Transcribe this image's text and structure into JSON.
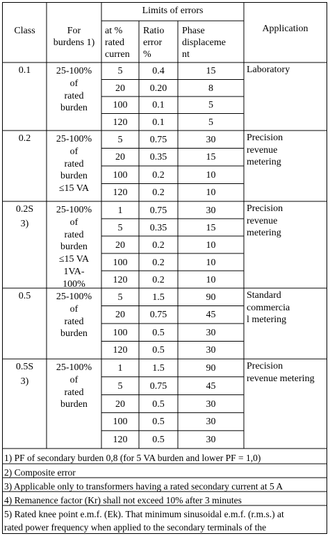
{
  "header": {
    "limits_of_errors": "Limits of errors",
    "class": "Class",
    "for_burdens": [
      "For",
      "burdens 1)"
    ],
    "at_rated_current": [
      "at  %",
      "rated",
      "curren"
    ],
    "ratio_error": [
      "Ratio",
      "error",
      "%"
    ],
    "phase_displacement": [
      "Phase",
      "displaceme",
      "nt"
    ],
    "application": "Application"
  },
  "rows": [
    {
      "class": [
        "0.1"
      ],
      "burden": [
        "25-100%",
        "of",
        "rated",
        "burden"
      ],
      "application": [
        "Laboratory"
      ],
      "sub": [
        {
          "pct": "5",
          "ratio": "0.4",
          "phase": "15"
        },
        {
          "pct": "20",
          "ratio": "0.20",
          "phase": "8"
        },
        {
          "pct": "100",
          "ratio": "0.1",
          "phase": "5"
        },
        {
          "pct": "120",
          "ratio": "0.1",
          "phase": "5"
        }
      ]
    },
    {
      "class": [
        "0.2"
      ],
      "burden": [
        "25-100%",
        "of",
        "rated",
        "burden",
        "≤15 VA"
      ],
      "application": [
        "Precision",
        "revenue",
        "metering"
      ],
      "sub": [
        {
          "pct": "5",
          "ratio": "0.75",
          "phase": "30"
        },
        {
          "pct": "20",
          "ratio": "0.35",
          "phase": "15"
        },
        {
          "pct": "100",
          "ratio": "0.2",
          "phase": "10"
        },
        {
          "pct": "120",
          "ratio": "0.2",
          "phase": "10"
        }
      ]
    },
    {
      "class": [
        "0.2S",
        "3)"
      ],
      "burden": [
        "25-100%",
        "of",
        "rated",
        "burden",
        "≤15 VA",
        "1VA-",
        "100%"
      ],
      "application": [
        "Precision",
        "revenue",
        "metering"
      ],
      "sub": [
        {
          "pct": "1",
          "ratio": "0.75",
          "phase": "30"
        },
        {
          "pct": "5",
          "ratio": "0.35",
          "phase": "15"
        },
        {
          "pct": "20",
          "ratio": "0.2",
          "phase": "10"
        },
        {
          "pct": "100",
          "ratio": "0.2",
          "phase": "10"
        },
        {
          "pct": "120",
          "ratio": "0.2",
          "phase": "10"
        }
      ]
    },
    {
      "class": [
        "0.5"
      ],
      "burden": [
        "25-100%",
        "of",
        "rated",
        "burden"
      ],
      "application": [
        "Standard",
        "commercia",
        "l metering"
      ],
      "sub": [
        {
          "pct": "5",
          "ratio": "1.5",
          "phase": "90"
        },
        {
          "pct": "20",
          "ratio": "0.75",
          "phase": "45"
        },
        {
          "pct": "100",
          "ratio": "0.5",
          "phase": "30"
        },
        {
          "pct": "120",
          "ratio": "0.5",
          "phase": "30"
        }
      ]
    },
    {
      "class": [
        "0.5S",
        "3)"
      ],
      "burden": [
        "25-100%",
        "of",
        "rated",
        "burden"
      ],
      "application": [
        "Precision",
        "revenue metering"
      ],
      "sub": [
        {
          "pct": "1",
          "ratio": "1.5",
          "phase": "90"
        },
        {
          "pct": "5",
          "ratio": "0.75",
          "phase": "45"
        },
        {
          "pct": "20",
          "ratio": "0.5",
          "phase": "30"
        },
        {
          "pct": "100",
          "ratio": "0.5",
          "phase": "30"
        },
        {
          "pct": "120",
          "ratio": "0.5",
          "phase": "30"
        }
      ]
    }
  ],
  "footnotes": [
    "1) PF of secondary burden 0,8 (for 5 VA burden and lower PF = 1,0)",
    "2) Composite error",
    "3) Applicable only to transformers having a rated secondary current at 5 A",
    "4) Remanence factor (Kr) shall not exceed 10% after 3 minutes",
    "5) Rated knee point e.m.f. (Ek). That minimum sinusoidal e.m.f. (r.m.s.) at",
    "rated power frequency when applied to the secondary terminals of the"
  ]
}
